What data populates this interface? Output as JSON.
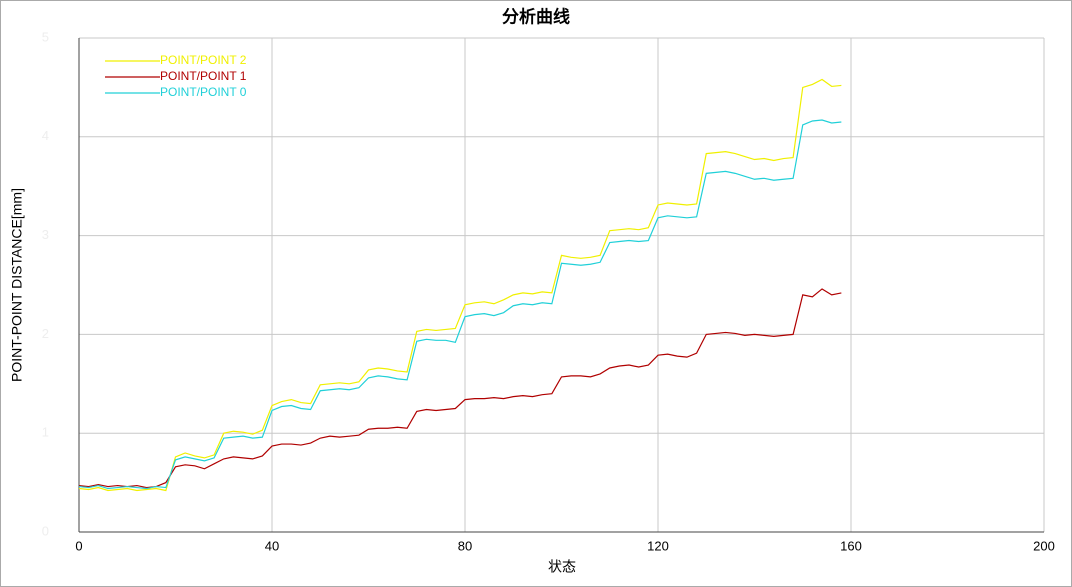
{
  "chart_data": {
    "type": "line",
    "title": "分析曲线",
    "x_label": "状态",
    "y_label": "POINT-POINT DISTANCE[mm]",
    "x": [
      0,
      2,
      4,
      6,
      8,
      10,
      12,
      14,
      16,
      18,
      20,
      22,
      24,
      26,
      28,
      30,
      32,
      34,
      36,
      38,
      40,
      42,
      44,
      46,
      48,
      50,
      52,
      54,
      56,
      58,
      60,
      62,
      64,
      66,
      68,
      70,
      72,
      74,
      76,
      78,
      80,
      82,
      84,
      86,
      88,
      90,
      92,
      94,
      96,
      98,
      100,
      102,
      104,
      106,
      108,
      110,
      112,
      114,
      116,
      118,
      120,
      122,
      124,
      126,
      128,
      130,
      132,
      134,
      136,
      138,
      140,
      142,
      144,
      146,
      148,
      150,
      152,
      154,
      156,
      158
    ],
    "series": [
      {
        "name": "POINT/POINT 2",
        "color": "#f0f000",
        "values": [
          0.44,
          0.43,
          0.45,
          0.42,
          0.43,
          0.44,
          0.42,
          0.43,
          0.44,
          0.42,
          0.76,
          0.8,
          0.77,
          0.75,
          0.78,
          1.0,
          1.02,
          1.01,
          0.99,
          1.03,
          1.28,
          1.32,
          1.34,
          1.31,
          1.3,
          1.49,
          1.5,
          1.51,
          1.5,
          1.52,
          1.64,
          1.66,
          1.65,
          1.63,
          1.62,
          2.03,
          2.05,
          2.04,
          2.05,
          2.06,
          2.3,
          2.32,
          2.33,
          2.31,
          2.35,
          2.4,
          2.42,
          2.41,
          2.43,
          2.42,
          2.8,
          2.78,
          2.77,
          2.78,
          2.8,
          3.05,
          3.06,
          3.07,
          3.06,
          3.08,
          3.31,
          3.33,
          3.32,
          3.31,
          3.32,
          3.83,
          3.84,
          3.85,
          3.83,
          3.8,
          3.77,
          3.78,
          3.76,
          3.78,
          3.79,
          4.5,
          4.53,
          4.58,
          4.51,
          4.52
        ]
      },
      {
        "name": "POINT/POINT 1",
        "color": "#b00000",
        "values": [
          0.47,
          0.46,
          0.48,
          0.46,
          0.47,
          0.46,
          0.47,
          0.45,
          0.46,
          0.5,
          0.66,
          0.68,
          0.67,
          0.64,
          0.69,
          0.74,
          0.76,
          0.75,
          0.74,
          0.77,
          0.87,
          0.89,
          0.89,
          0.88,
          0.9,
          0.95,
          0.97,
          0.96,
          0.97,
          0.98,
          1.04,
          1.05,
          1.05,
          1.06,
          1.05,
          1.22,
          1.24,
          1.23,
          1.24,
          1.25,
          1.34,
          1.35,
          1.35,
          1.36,
          1.35,
          1.37,
          1.38,
          1.37,
          1.39,
          1.4,
          1.57,
          1.58,
          1.58,
          1.57,
          1.6,
          1.66,
          1.68,
          1.69,
          1.67,
          1.69,
          1.79,
          1.8,
          1.78,
          1.77,
          1.81,
          2.0,
          2.01,
          2.02,
          2.01,
          1.99,
          2.0,
          1.99,
          1.98,
          1.99,
          2.0,
          2.4,
          2.38,
          2.46,
          2.4,
          2.42
        ]
      },
      {
        "name": "POINT/POINT 0",
        "color": "#20d0d8",
        "values": [
          0.46,
          0.45,
          0.47,
          0.44,
          0.45,
          0.46,
          0.45,
          0.44,
          0.46,
          0.45,
          0.73,
          0.76,
          0.74,
          0.72,
          0.75,
          0.95,
          0.96,
          0.97,
          0.95,
          0.96,
          1.23,
          1.27,
          1.28,
          1.25,
          1.24,
          1.43,
          1.44,
          1.45,
          1.44,
          1.46,
          1.56,
          1.58,
          1.57,
          1.55,
          1.54,
          1.93,
          1.95,
          1.94,
          1.94,
          1.92,
          2.18,
          2.2,
          2.21,
          2.19,
          2.22,
          2.29,
          2.31,
          2.3,
          2.32,
          2.31,
          2.72,
          2.71,
          2.7,
          2.71,
          2.73,
          2.93,
          2.94,
          2.95,
          2.94,
          2.95,
          3.18,
          3.2,
          3.19,
          3.18,
          3.19,
          3.63,
          3.64,
          3.65,
          3.63,
          3.6,
          3.57,
          3.58,
          3.56,
          3.57,
          3.58,
          4.12,
          4.16,
          4.17,
          4.14,
          4.15
        ]
      }
    ],
    "xlim": [
      0,
      200
    ],
    "xticks": [
      0,
      40,
      80,
      120,
      160,
      200
    ],
    "ylim": [
      0,
      5
    ],
    "yticks": [
      0,
      1,
      2,
      3,
      4,
      5
    ],
    "grid": true,
    "legend": "upper left"
  }
}
